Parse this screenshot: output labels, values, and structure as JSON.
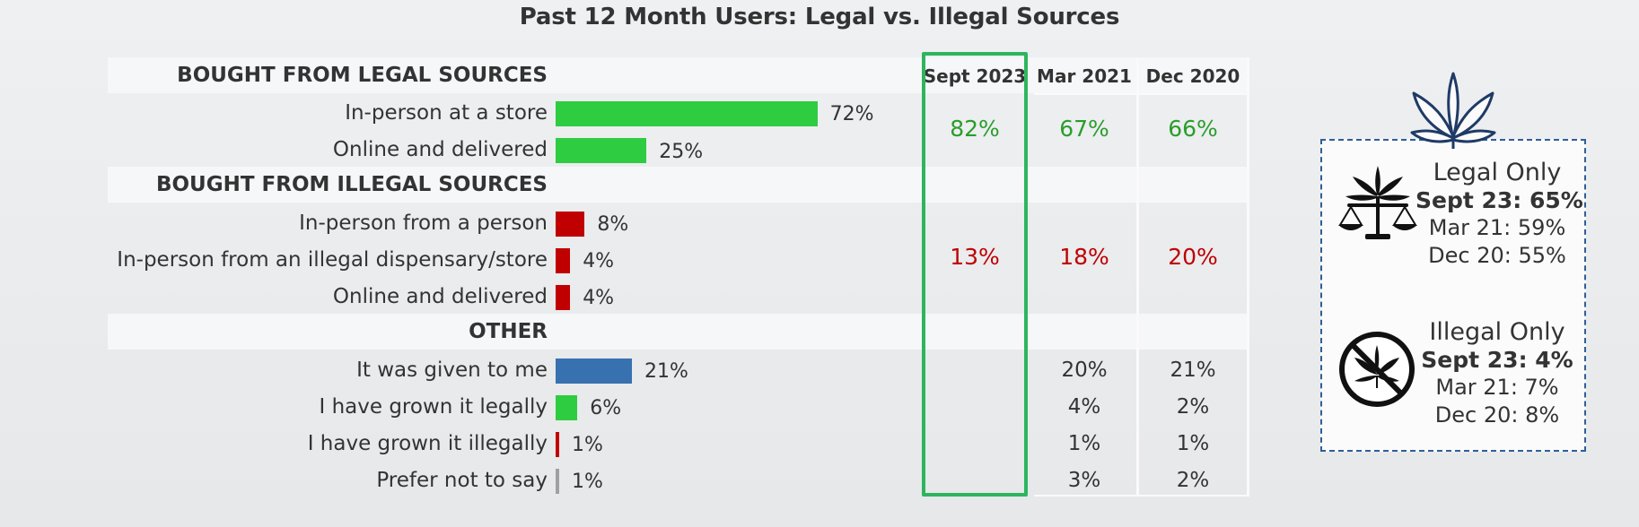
{
  "title": "Past 12 Month Users: Legal vs. Illegal Sources",
  "columns": [
    "Sept 2023",
    "Mar 2021",
    "Dec 2020"
  ],
  "colors": {
    "legal": "#2ecc40",
    "illegal": "#c00000",
    "given": "#3771b0",
    "prefer": "#a0a0a0",
    "highlight": "#2db55d"
  },
  "chart_data": {
    "type": "bar",
    "sections": [
      {
        "header": "BOUGHT FROM LEGAL SOURCES",
        "rows": [
          {
            "label": "In-person at a store",
            "value": 72,
            "value_label": "72%",
            "color": "#2ecc40"
          },
          {
            "label": "Online and delivered",
            "value": 25,
            "value_label": "25%",
            "color": "#2ecc40"
          }
        ],
        "summary": [
          "82%",
          "67%",
          "66%"
        ],
        "summary_color": "#2a9d2a"
      },
      {
        "header": "BOUGHT FROM ILLEGAL SOURCES",
        "rows": [
          {
            "label": "In-person from a person",
            "value": 8,
            "value_label": "8%",
            "color": "#c00000"
          },
          {
            "label": "In-person from an illegal dispensary/store",
            "value": 4,
            "value_label": "4%",
            "color": "#c00000"
          },
          {
            "label": "Online and delivered",
            "value": 4,
            "value_label": "4%",
            "color": "#c00000"
          }
        ],
        "summary": [
          "13%",
          "18%",
          "20%"
        ],
        "summary_color": "#c00000"
      },
      {
        "header": "OTHER",
        "rows": [
          {
            "label": "It was given to me",
            "value": 21,
            "value_label": "21%",
            "color": "#3771b0",
            "trend": [
              "20%",
              "21%"
            ]
          },
          {
            "label": "I have grown it legally",
            "value": 6,
            "value_label": "6%",
            "color": "#2ecc40",
            "trend": [
              "4%",
              "2%"
            ]
          },
          {
            "label": "I have grown it illegally",
            "value": 1,
            "value_label": "1%",
            "color": "#c00000",
            "trend": [
              "1%",
              "1%"
            ]
          },
          {
            "label": "Prefer not to say",
            "value": 1,
            "value_label": "1%",
            "color": "#a0a0a0",
            "trend": [
              "3%",
              "2%"
            ]
          }
        ]
      }
    ]
  },
  "legend": {
    "legal": {
      "title": "Legal Only",
      "current": "Sept 23: 65%",
      "lines": [
        "Mar 21: 59%",
        "Dec 20: 55%"
      ]
    },
    "illegal": {
      "title": "Illegal Only",
      "current": "Sept 23: 4%",
      "lines": [
        "Mar 21: 7%",
        "Dec 20: 8%"
      ]
    }
  },
  "icons": [
    "cannabis-leaf-icon",
    "scales-leaf-icon",
    "no-cannabis-icon"
  ]
}
